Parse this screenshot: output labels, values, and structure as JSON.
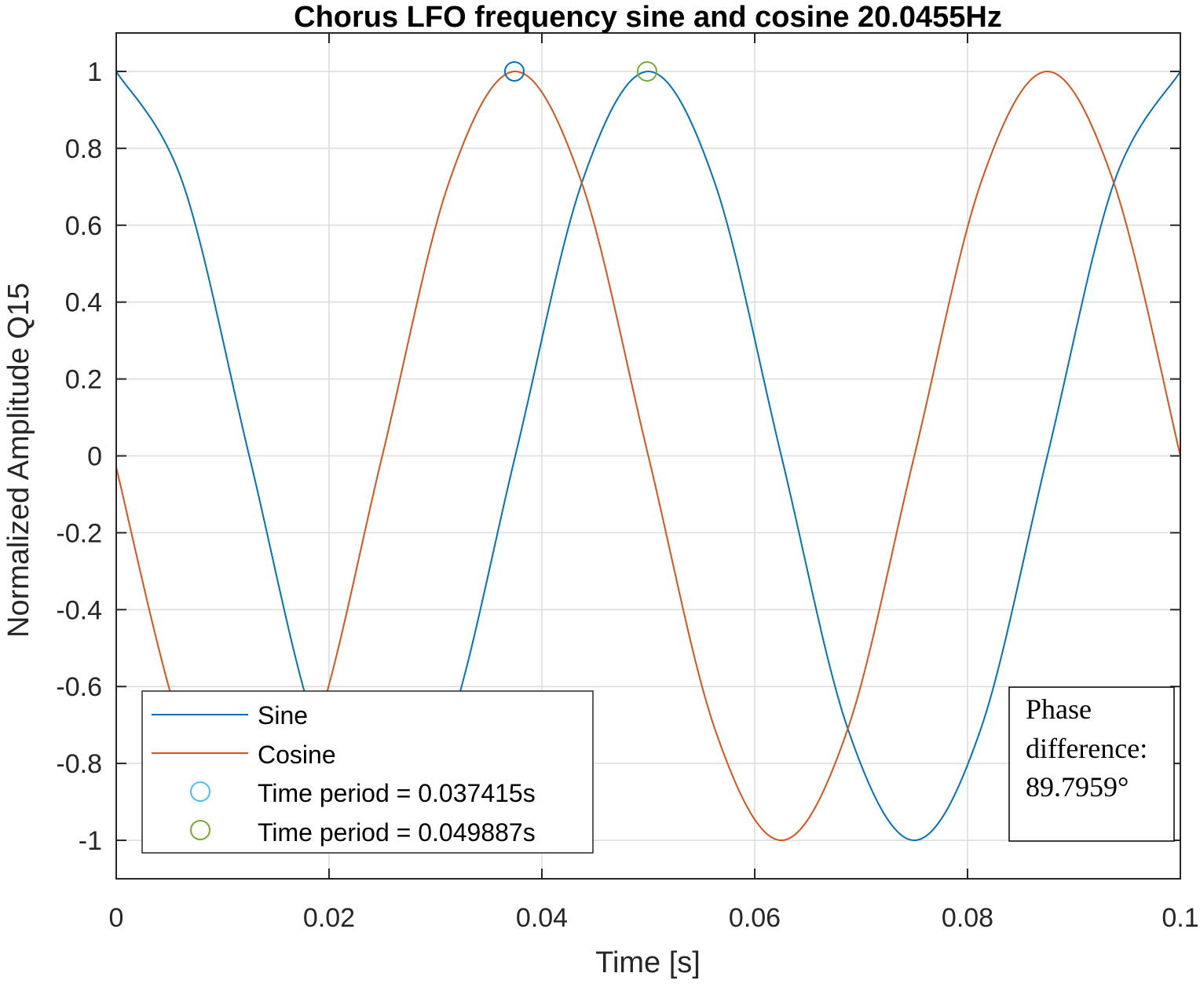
{
  "chart_data": {
    "type": "line",
    "title": "Chorus LFO frequency sine and cosine 20.0455Hz",
    "xlabel": "Time [s]",
    "ylabel": "Normalized Amplitude Q15",
    "xlim": [
      0,
      0.1
    ],
    "ylim": [
      -1.1,
      1.1
    ],
    "x_ticks": [
      0,
      0.02,
      0.04,
      0.06,
      0.08,
      0.1
    ],
    "x_tick_labels": [
      "0",
      "0.02",
      "0.04",
      "0.06",
      "0.08",
      "0.1"
    ],
    "y_ticks": [
      1,
      0.8,
      0.6,
      0.4,
      0.2,
      0,
      -0.2,
      -0.4,
      -0.6,
      -0.8,
      -1
    ],
    "y_tick_labels": [
      "1",
      "0.8",
      "0.6",
      "0.4",
      "0.2",
      "0",
      "-0.2",
      "-0.4",
      "-0.6",
      "-0.8",
      "-1"
    ],
    "grid": true,
    "series": [
      {
        "name": "Sine",
        "color": "#0072BD",
        "x": [
          0,
          0.00625,
          0.0125,
          0.01875,
          0.025,
          0.03125,
          0.0375,
          0.04375,
          0.05,
          0.05625,
          0.0625,
          0.06875,
          0.075,
          0.08125,
          0.0875,
          0.09375,
          0.1
        ],
        "y": [
          1.0,
          0.71,
          0.0,
          -0.71,
          -1.0,
          -0.71,
          0.0,
          0.71,
          1.0,
          0.71,
          0.0,
          -0.71,
          -1.0,
          -0.71,
          0.0,
          0.71,
          1.0
        ]
      },
      {
        "name": "Cosine",
        "color": "#D95319",
        "x": [
          0,
          0.00625,
          0.0125,
          0.01875,
          0.025,
          0.03125,
          0.0375,
          0.04375,
          0.05,
          0.05625,
          0.0625,
          0.06875,
          0.075,
          0.08125,
          0.0875,
          0.09375,
          0.1
        ],
        "y": [
          -0.03,
          -0.72,
          -1.0,
          -0.71,
          0.0,
          0.71,
          1.0,
          0.71,
          0.0,
          -0.71,
          -1.0,
          -0.71,
          0.0,
          0.71,
          1.0,
          0.71,
          0.0
        ]
      }
    ],
    "markers": [
      {
        "name": "Time period = 0.037415s",
        "x": 0.037415,
        "y": 1.0,
        "color": "#0072BD",
        "legend_color": "#4DBEEE"
      },
      {
        "name": "Time period = 0.049887s",
        "x": 0.049887,
        "y": 1.0,
        "color": "#77AC30",
        "legend_color": "#77AC30"
      }
    ],
    "legend_position": "bottom-left",
    "annotation": {
      "position": "bottom-right",
      "lines": [
        "Phase",
        "difference:",
        "89.7959°"
      ]
    }
  }
}
